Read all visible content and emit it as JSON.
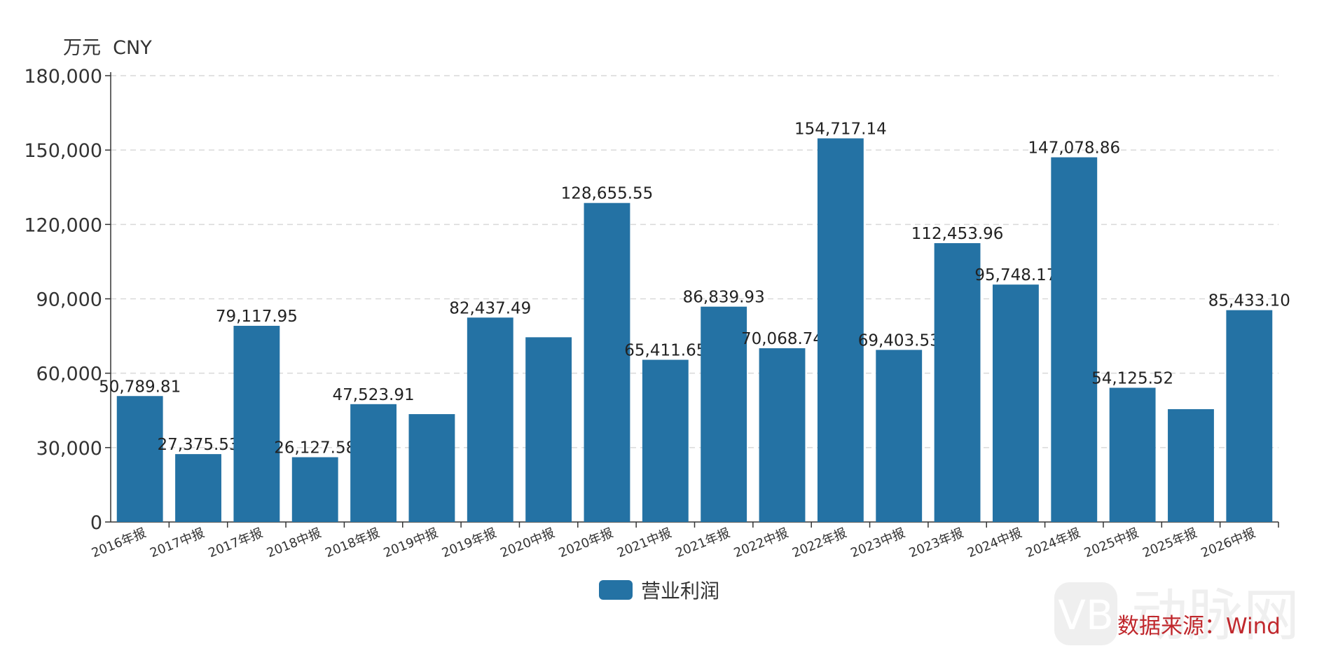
{
  "chart_data": {
    "type": "bar",
    "unit_label": "万元  CNY",
    "categories": [
      "2016年报",
      "2017中报",
      "2017年报",
      "2018中报",
      "2018年报",
      "2019中报",
      "2019年报",
      "2020中报",
      "2020年报",
      "2021中报",
      "2021年报",
      "2022中报",
      "2022年报",
      "2023中报",
      "2023年报",
      "2024中报",
      "2024年报",
      "2025中报",
      "2025年报",
      "2026中报"
    ],
    "series": [
      {
        "name": "营业利润",
        "color": "#2472a4",
        "values": [
          50789.81,
          27375.53,
          79117.95,
          26127.58,
          47523.91,
          43500,
          82437.49,
          74500,
          128655.55,
          65411.65,
          86839.93,
          70068.74,
          154717.14,
          69403.53,
          112453.96,
          95748.17,
          147078.86,
          54125.52,
          45500,
          85433.1
        ],
        "labels": [
          "50,789.81",
          "27,375.53",
          "79,117.95",
          "26,127.58",
          "47,523.91",
          "",
          "82,437.49",
          "",
          "128,655.55",
          "65,411.65",
          "86,839.93",
          "70,068.74",
          "154,717.14",
          "69,403.53",
          "112,453.96",
          "95,748.17",
          "147,078.86",
          "54,125.52",
          "",
          "85,433.10"
        ]
      }
    ],
    "ylim": [
      0,
      180000
    ],
    "yticks": [
      0,
      30000,
      60000,
      90000,
      120000,
      150000,
      180000
    ],
    "ytick_labels": [
      "0",
      "30,000",
      "60,000",
      "90,000",
      "120,000",
      "150,000",
      "180,000"
    ],
    "grid": true,
    "legend_position": "bottom-center"
  },
  "source_text": "数据来源：Wind",
  "watermark_text": "动脉网"
}
